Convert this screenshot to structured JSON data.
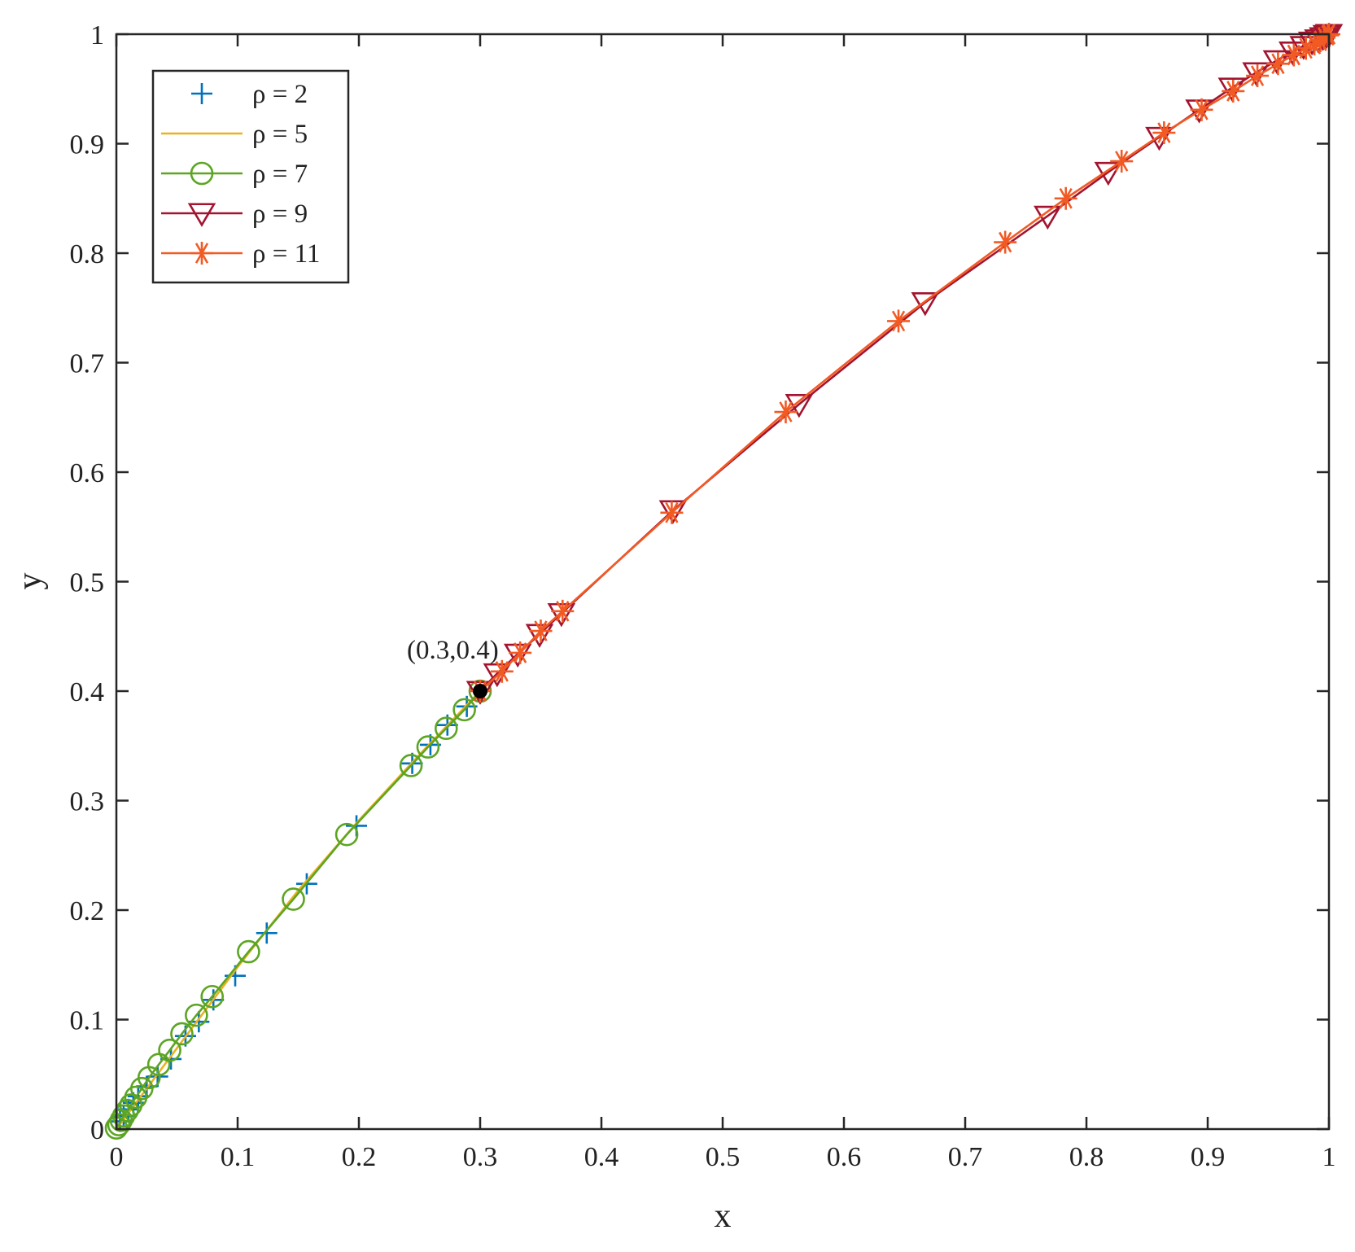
{
  "chart_data": {
    "type": "line",
    "xlabel": "x",
    "ylabel": "y",
    "xlim": [
      0,
      1
    ],
    "ylim": [
      0,
      1
    ],
    "xticks": [
      "0",
      "0.1",
      "0.2",
      "0.3",
      "0.4",
      "0.5",
      "0.6",
      "0.7",
      "0.8",
      "0.9",
      "1"
    ],
    "yticks": [
      "0",
      "0.1",
      "0.2",
      "0.3",
      "0.4",
      "0.5",
      "0.6",
      "0.7",
      "0.8",
      "0.9",
      "1"
    ],
    "grid": false,
    "legend_position": "top-left",
    "series": [
      {
        "name": "ρ = 2",
        "color": "#0072BD",
        "marker": "plus",
        "line": false,
        "x": [
          0.003,
          0.006,
          0.01,
          0.014,
          0.018,
          0.025,
          0.034,
          0.045,
          0.057,
          0.068,
          0.08,
          0.098,
          0.124,
          0.157,
          0.198,
          0.244,
          0.259,
          0.273,
          0.289
        ],
        "y": [
          0.007,
          0.012,
          0.018,
          0.024,
          0.03,
          0.039,
          0.048,
          0.064,
          0.085,
          0.098,
          0.118,
          0.14,
          0.179,
          0.224,
          0.277,
          0.334,
          0.351,
          0.369,
          0.386
        ]
      },
      {
        "name": "ρ = 5",
        "color": "#EDB120",
        "marker": "none",
        "line": true,
        "x": [
          0,
          0.05,
          0.1,
          0.15,
          0.2,
          0.25,
          0.3
        ],
        "y": [
          0,
          0.074,
          0.148,
          0.218,
          0.282,
          0.342,
          0.4
        ]
      },
      {
        "name": "ρ = 7",
        "color": "#5CA523",
        "marker": "circle",
        "line": true,
        "x": [
          0,
          0.002,
          0.004,
          0.006,
          0.009,
          0.012,
          0.016,
          0.021,
          0.027,
          0.035,
          0.044,
          0.054,
          0.066,
          0.079,
          0.109,
          0.146,
          0.19,
          0.243,
          0.257,
          0.272,
          0.287,
          0.3
        ],
        "y": [
          0.001,
          0.004,
          0.008,
          0.012,
          0.017,
          0.022,
          0.029,
          0.037,
          0.047,
          0.059,
          0.072,
          0.087,
          0.104,
          0.121,
          0.162,
          0.21,
          0.269,
          0.332,
          0.349,
          0.366,
          0.383,
          0.4
        ]
      },
      {
        "name": "ρ = 9",
        "color": "#A2142F",
        "marker": "triangle-down",
        "line": true,
        "x": [
          0.3,
          0.314,
          0.331,
          0.349,
          0.367,
          0.459,
          0.563,
          0.667,
          0.768,
          0.818,
          0.86,
          0.893,
          0.92,
          0.94,
          0.957,
          0.97,
          0.979,
          0.986,
          0.991,
          0.995,
          0.998,
          1.0
        ],
        "y": [
          0.4,
          0.416,
          0.434,
          0.452,
          0.471,
          0.565,
          0.662,
          0.755,
          0.834,
          0.874,
          0.906,
          0.931,
          0.951,
          0.965,
          0.976,
          0.984,
          0.989,
          0.993,
          0.995,
          0.997,
          0.999,
          1.0
        ]
      },
      {
        "name": "ρ = 11",
        "color": "#F25A24",
        "marker": "asterisk",
        "line": true,
        "x": [
          0.3,
          0.318,
          0.333,
          0.35,
          0.368,
          0.458,
          0.552,
          0.645,
          0.733,
          0.783,
          0.829,
          0.864,
          0.895,
          0.921,
          0.941,
          0.958,
          0.971,
          0.981,
          0.988,
          0.993,
          0.996,
          0.999,
          1.0
        ],
        "y": [
          0.4,
          0.418,
          0.435,
          0.455,
          0.473,
          0.563,
          0.655,
          0.738,
          0.81,
          0.85,
          0.884,
          0.91,
          0.931,
          0.948,
          0.962,
          0.973,
          0.981,
          0.987,
          0.991,
          0.994,
          0.997,
          0.999,
          1.0
        ]
      }
    ],
    "annotations": [
      {
        "text": "(0.3,0.4)",
        "x": 0.3,
        "y": 0.4,
        "marker_color": "#000000"
      }
    ]
  }
}
